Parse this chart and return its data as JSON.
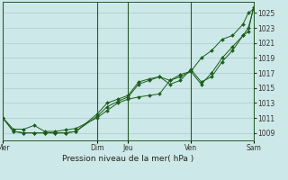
{
  "xlabel": "Pression niveau de la mer( hPa )",
  "background_color": "#cde8e8",
  "grid_color": "#aacccc",
  "line_color": "#1a5e1a",
  "ylim": [
    1008.0,
    1026.5
  ],
  "yticks": [
    1009,
    1011,
    1013,
    1015,
    1017,
    1019,
    1021,
    1023,
    1025
  ],
  "xlim": [
    0,
    48
  ],
  "day_labels": [
    "Mer",
    "Dim",
    "Jeu",
    "Ven",
    "Sam"
  ],
  "day_positions": [
    0,
    18,
    24,
    36,
    48
  ],
  "line1_x": [
    0,
    2,
    4,
    6,
    8,
    10,
    12,
    14,
    18,
    20,
    22,
    24,
    26,
    28,
    30,
    32,
    34,
    36,
    38,
    40,
    42,
    44,
    46,
    47,
    48
  ],
  "line1_y": [
    1011,
    1009.5,
    1009.5,
    1010,
    1009.2,
    1009.2,
    1009.4,
    1009.6,
    1011,
    1012,
    1013,
    1013.5,
    1013.8,
    1014,
    1014.2,
    1016,
    1016.5,
    1017.2,
    1019,
    1020,
    1021.5,
    1022,
    1023.5,
    1025,
    1025.5
  ],
  "line2_x": [
    0,
    2,
    4,
    6,
    8,
    10,
    12,
    14,
    18,
    20,
    22,
    24,
    26,
    28,
    30,
    32,
    34,
    36,
    38,
    40,
    42,
    44,
    46,
    47,
    48
  ],
  "line2_y": [
    1011,
    1009.2,
    1009.0,
    1009.0,
    1009.0,
    1009.0,
    1009.0,
    1009.2,
    1011.2,
    1012.5,
    1013.2,
    1013.8,
    1015.5,
    1016,
    1016.5,
    1016,
    1016.8,
    1017.2,
    1015.5,
    1017,
    1019,
    1020.5,
    1022,
    1023,
    1025.5
  ],
  "line3_x": [
    0,
    2,
    4,
    6,
    8,
    10,
    12,
    14,
    18,
    20,
    22,
    24,
    26,
    28,
    30,
    32,
    34,
    36,
    38,
    40,
    42,
    44,
    46,
    47,
    48
  ],
  "line3_y": [
    1011,
    1009.2,
    1009.0,
    1009.0,
    1009.0,
    1009.0,
    1009.0,
    1009.2,
    1011.5,
    1013,
    1013.5,
    1014,
    1015.8,
    1016.2,
    1016.5,
    1015.5,
    1016,
    1017.5,
    1015.8,
    1016.5,
    1018.5,
    1020,
    1022,
    1022.5,
    1025.8
  ]
}
